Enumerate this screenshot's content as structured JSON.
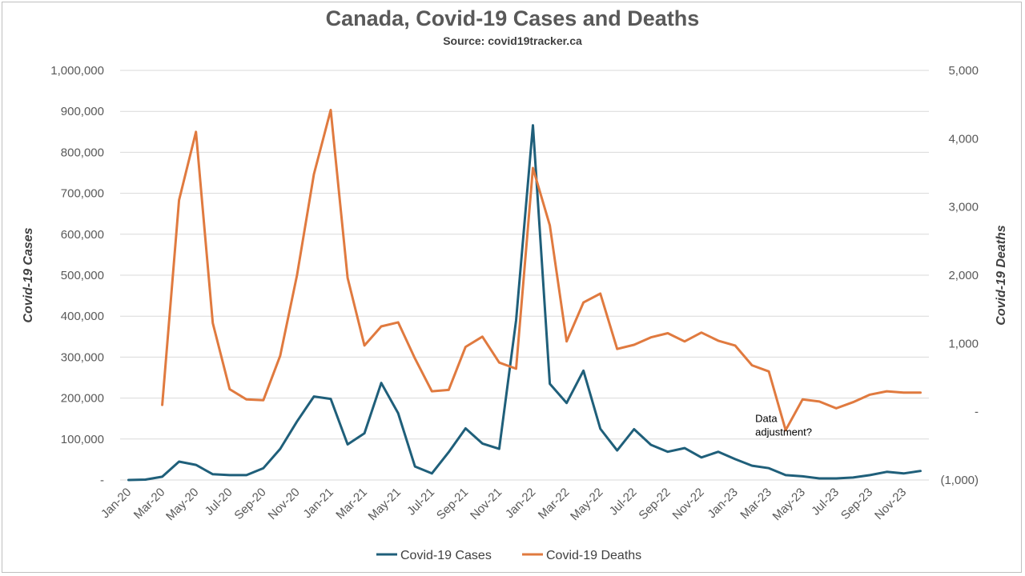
{
  "chart_data": {
    "type": "line",
    "title": "Canada, Covid-19 Cases and Deaths",
    "subtitle": "Source: covid19tracker.ca",
    "ylabel_left": "Covid-19 Cases",
    "ylabel_right": "Covid-19 Deaths",
    "ylim_left": [
      0,
      1000000
    ],
    "ylim_right": [
      -1000,
      5000
    ],
    "yticks_left": [
      "-",
      "100,000",
      "200,000",
      "300,000",
      "400,000",
      "500,000",
      "600,000",
      "700,000",
      "800,000",
      "900,000",
      "1,000,000"
    ],
    "yticks_right": [
      "(1,000)",
      "-",
      "1,000",
      "2,000",
      "3,000",
      "4,000",
      "5,000"
    ],
    "x": [
      "Jan-20",
      "Feb-20",
      "Mar-20",
      "Apr-20",
      "May-20",
      "Jun-20",
      "Jul-20",
      "Aug-20",
      "Sep-20",
      "Oct-20",
      "Nov-20",
      "Dec-20",
      "Jan-21",
      "Feb-21",
      "Mar-21",
      "Apr-21",
      "May-21",
      "Jun-21",
      "Jul-21",
      "Aug-21",
      "Sep-21",
      "Oct-21",
      "Nov-21",
      "Dec-21",
      "Jan-22",
      "Feb-22",
      "Mar-22",
      "Apr-22",
      "May-22",
      "Jun-22",
      "Jul-22",
      "Aug-22",
      "Sep-22",
      "Oct-22",
      "Nov-22",
      "Dec-22",
      "Jan-23",
      "Feb-23",
      "Mar-23",
      "Apr-23",
      "May-23",
      "Jun-23",
      "Jul-23",
      "Aug-23",
      "Sep-23",
      "Oct-23",
      "Nov-23",
      "Dec-23"
    ],
    "xtick_labels": [
      "Jan-20",
      "Mar-20",
      "May-20",
      "Jul-20",
      "Sep-20",
      "Nov-20",
      "Jan-21",
      "Mar-21",
      "May-21",
      "Jul-21",
      "Sep-21",
      "Nov-21",
      "Jan-22",
      "Mar-22",
      "May-22",
      "Jul-22",
      "Sep-22",
      "Nov-22",
      "Jan-23",
      "Mar-23",
      "May-23",
      "Jul-23",
      "Sep-23",
      "Nov-23"
    ],
    "grid": true,
    "legend_position": "bottom",
    "series": [
      {
        "name": "Covid-19 Cases",
        "axis": "left",
        "color": "#1f5f7a",
        "values": [
          0,
          1000,
          8000,
          45000,
          37000,
          14000,
          12000,
          12000,
          29000,
          76000,
          143000,
          204000,
          198000,
          87000,
          114000,
          237000,
          163000,
          33000,
          16000,
          68000,
          126000,
          89000,
          76000,
          390000,
          866000,
          235000,
          188000,
          267000,
          125000,
          72000,
          124000,
          86000,
          69000,
          78000,
          55000,
          69000,
          51000,
          35000,
          29000,
          12000,
          9000,
          4000,
          4000,
          6000,
          12000,
          20000,
          16000,
          22000
        ]
      },
      {
        "name": "Covid-19 Deaths",
        "axis": "right",
        "color": "#e07a3f",
        "values": [
          null,
          null,
          100,
          3100,
          4100,
          1300,
          330,
          180,
          170,
          820,
          2000,
          3480,
          4420,
          1960,
          970,
          1250,
          1310,
          780,
          300,
          320,
          950,
          1100,
          720,
          630,
          3570,
          2730,
          1030,
          1600,
          1730,
          920,
          980,
          1090,
          1150,
          1030,
          1160,
          1040,
          970,
          680,
          590,
          -270,
          180,
          150,
          50,
          140,
          250,
          300,
          280,
          280
        ]
      }
    ],
    "annotations": [
      {
        "lines": [
          "Data",
          "adjustment?"
        ],
        "x": "Apr-23",
        "y": -270
      }
    ]
  }
}
